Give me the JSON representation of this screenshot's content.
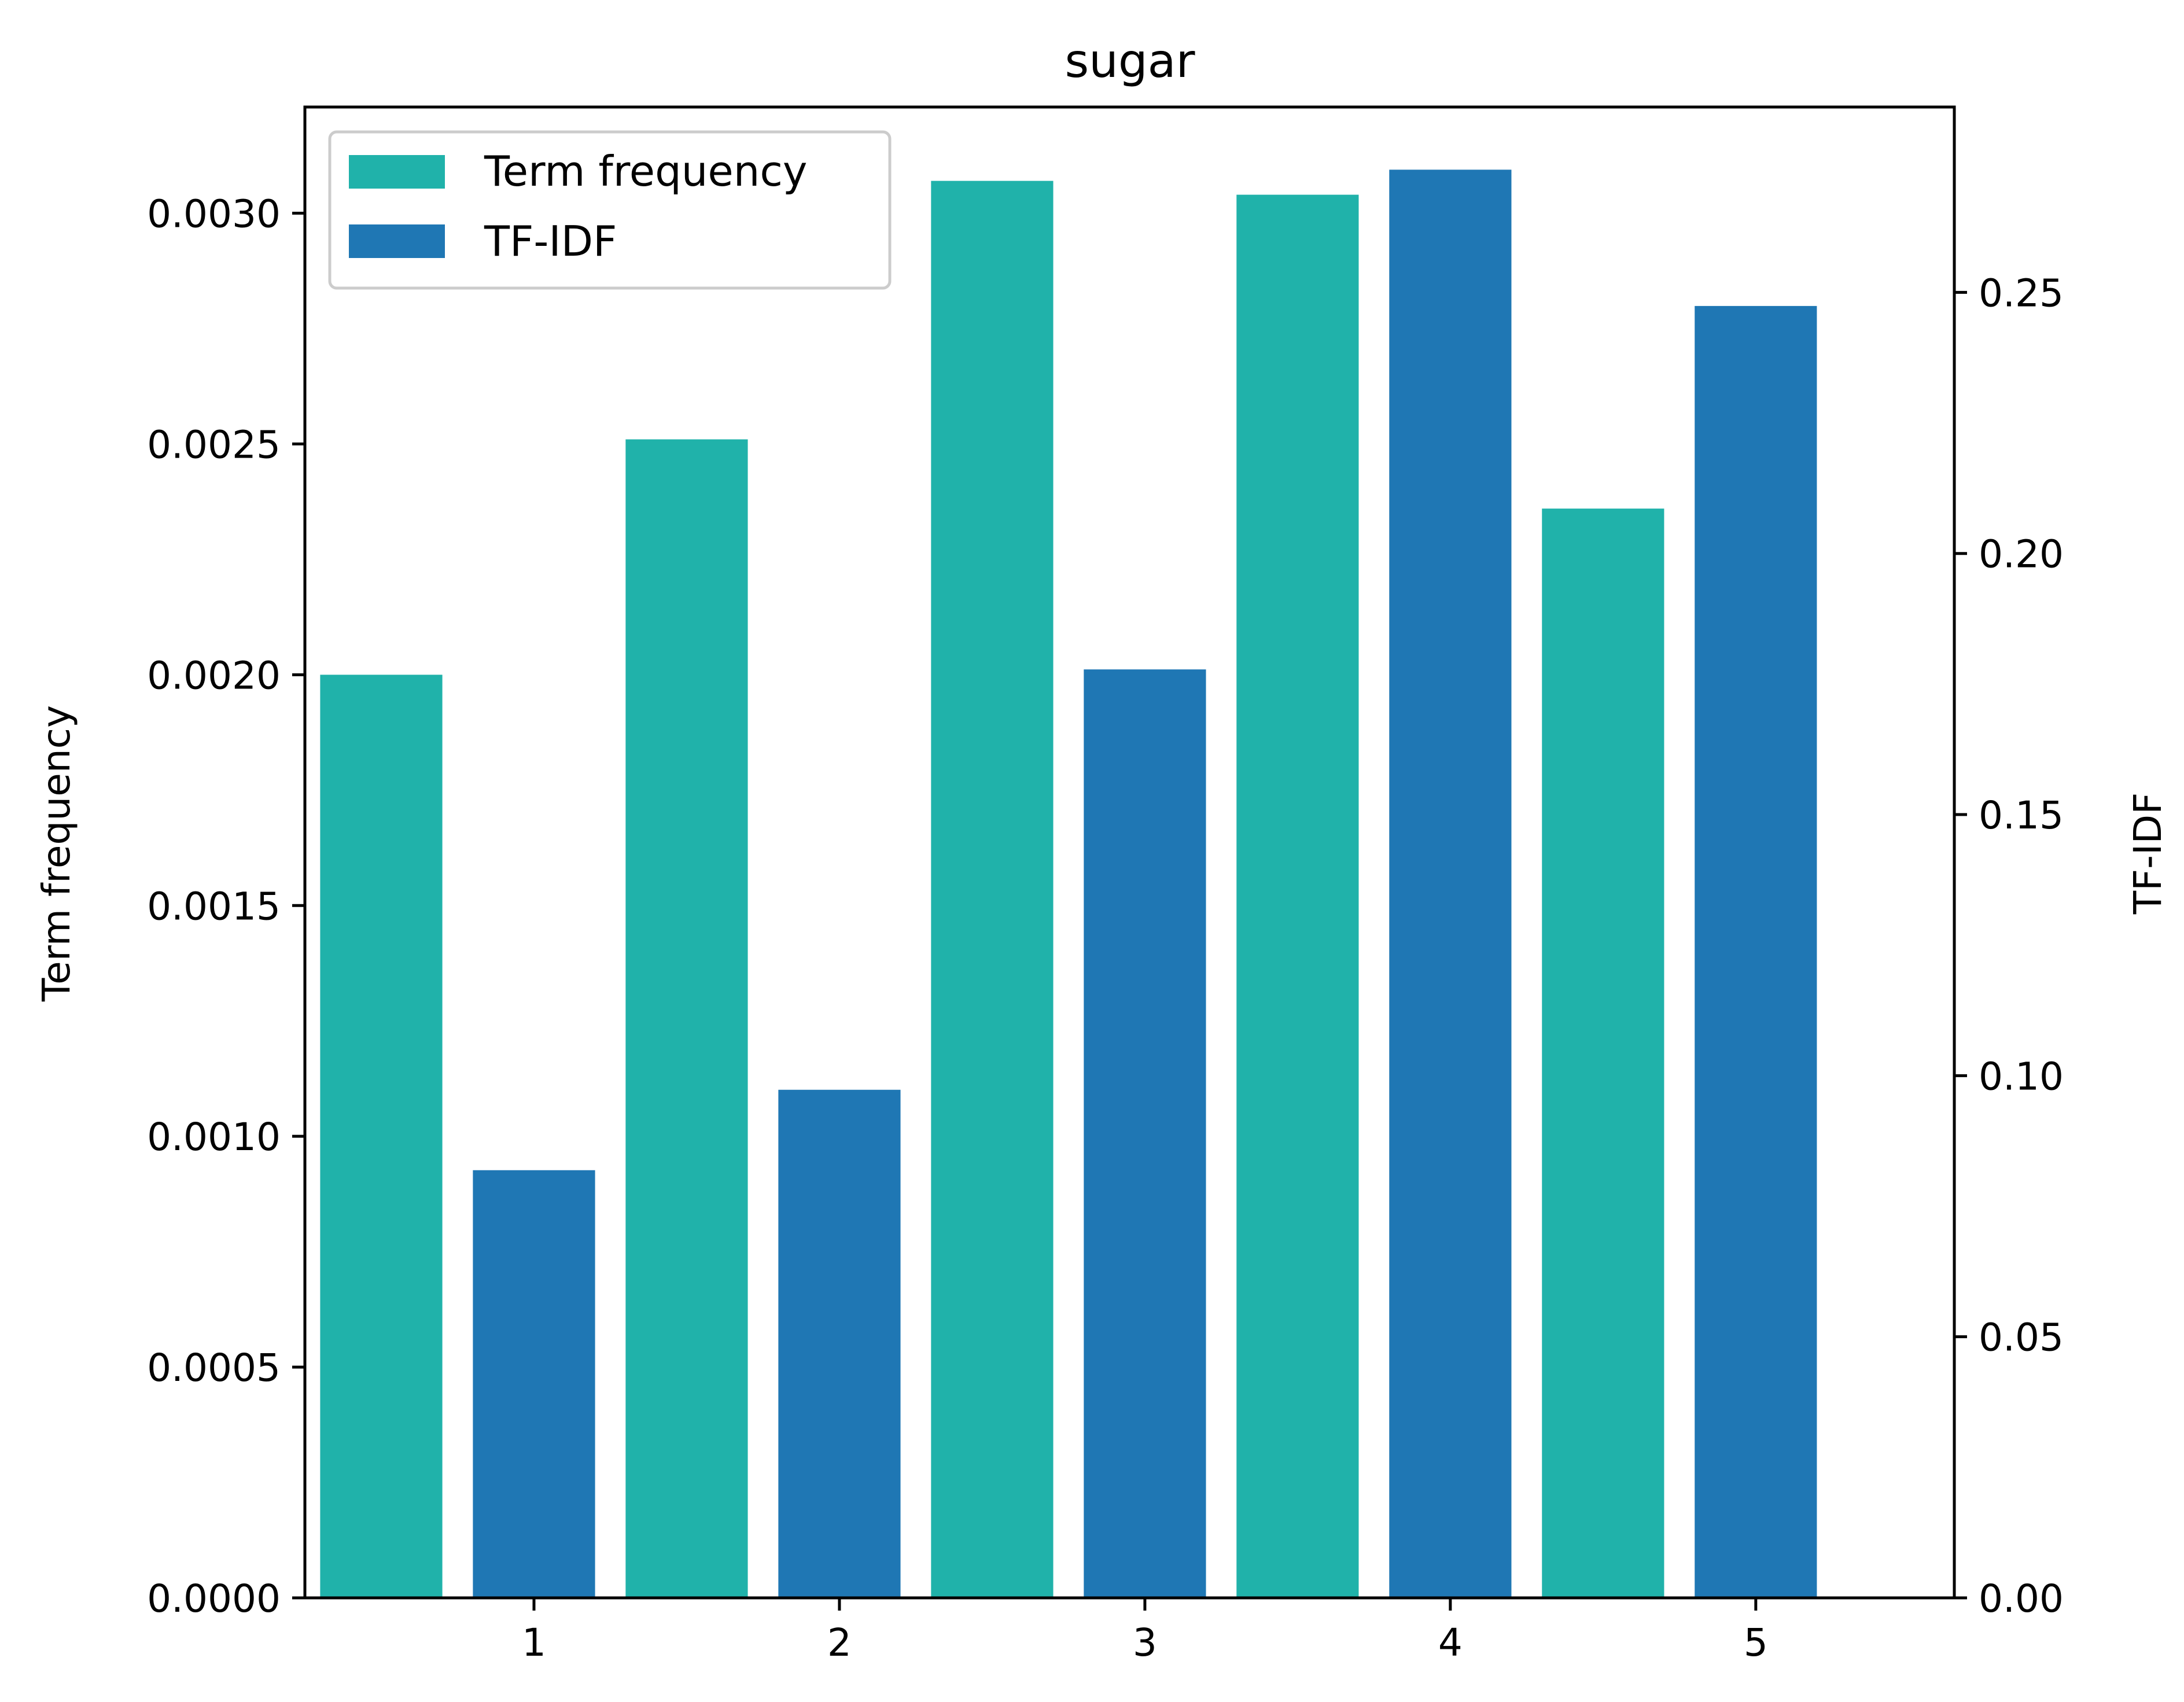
{
  "chart_data": {
    "type": "bar",
    "title": "sugar",
    "xlabel": "",
    "categories": [
      "1",
      "2",
      "3",
      "4",
      "5"
    ],
    "y_left": {
      "label": "Term frequency",
      "ylim": [
        0,
        0.00323
      ],
      "ticks": [
        0,
        0.0005,
        0.001,
        0.0015,
        0.002,
        0.0025,
        0.003
      ],
      "tick_labels": [
        "0.0000",
        "0.0005",
        "0.0010",
        "0.0015",
        "0.0020",
        "0.0025",
        "0.0030"
      ]
    },
    "y_right": {
      "label": "TF-IDF",
      "ylim": [
        0,
        0.2855
      ],
      "ticks": [
        0,
        0.05,
        0.1,
        0.15,
        0.2,
        0.25
      ],
      "tick_labels": [
        "0.00",
        "0.05",
        "0.10",
        "0.15",
        "0.20",
        "0.25"
      ]
    },
    "series": [
      {
        "name": "Term frequency",
        "axis": "left",
        "color": "#20b2aa",
        "x_offset": -0.5,
        "values": [
          0.002,
          0.00251,
          0.00307,
          0.00304,
          0.00236
        ]
      },
      {
        "name": "TF-IDF",
        "axis": "right",
        "color": "#1f77b4",
        "x_offset": 0,
        "values": [
          0.0819,
          0.0973,
          0.1778,
          0.2735,
          0.2474
        ]
      }
    ],
    "grid": false,
    "legend_position": "top-left"
  }
}
